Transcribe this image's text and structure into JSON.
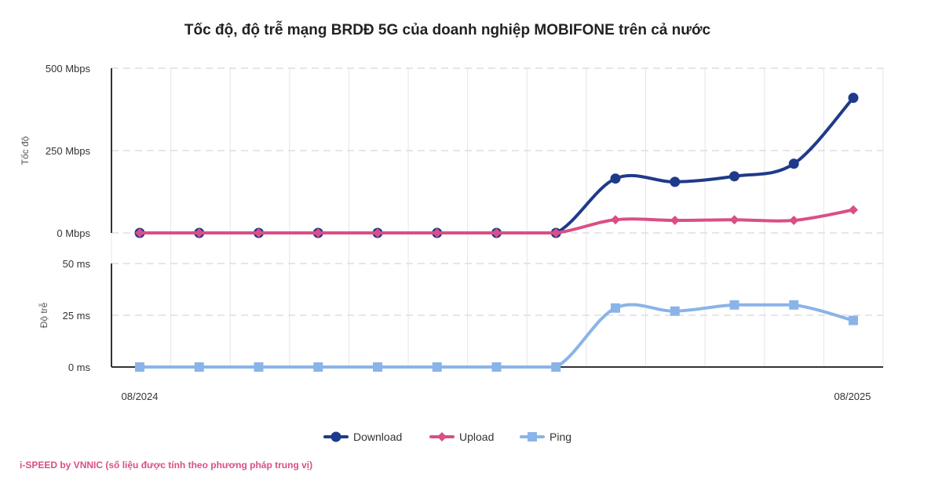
{
  "chart_data": {
    "type": "line",
    "title": "Tốc độ, độ trễ mạng BRDĐ 5G của doanh nghiệp MOBIFONE trên cả nước",
    "xlabel": "",
    "x_tick_labels": [
      "08/2024",
      "08/2025"
    ],
    "x_count": 13,
    "panels": [
      {
        "id": "speed",
        "ylabel": "Tốc độ",
        "ylim": [
          0,
          500
        ],
        "y_ticks": [
          {
            "value": 0,
            "label": "0 Mbps"
          },
          {
            "value": 250,
            "label": "250 Mbps"
          },
          {
            "value": 500,
            "label": "500 Mbps"
          }
        ],
        "series": [
          {
            "name": "Download",
            "color": "#1f3a8a",
            "marker": "circle",
            "values": [
              0,
              0,
              0,
              0,
              0,
              0,
              0,
              0,
              165,
              155,
              172,
              210,
              410
            ]
          },
          {
            "name": "Upload",
            "color": "#d94f86",
            "marker": "diamond",
            "values": [
              0,
              0,
              0,
              0,
              0,
              0,
              0,
              0,
              40,
              38,
              40,
              38,
              70
            ]
          }
        ]
      },
      {
        "id": "latency",
        "ylabel": "Độ trễ",
        "ylim": [
          0,
          50
        ],
        "y_ticks": [
          {
            "value": 0,
            "label": "0 ms"
          },
          {
            "value": 25,
            "label": "25 ms"
          },
          {
            "value": 50,
            "label": "50 ms"
          }
        ],
        "series": [
          {
            "name": "Ping",
            "color": "#8ab4e8",
            "marker": "square",
            "values": [
              0,
              0,
              0,
              0,
              0,
              0,
              0,
              0,
              28.5,
              27,
              30,
              30,
              22.5
            ]
          }
        ]
      }
    ],
    "legend": {
      "position": "bottom",
      "items": [
        "Download",
        "Upload",
        "Ping"
      ]
    }
  },
  "footer": {
    "text": "i-SPEED by VNNIC (số liệu được tính theo phương pháp trung vị)",
    "color": "#d94f86"
  }
}
